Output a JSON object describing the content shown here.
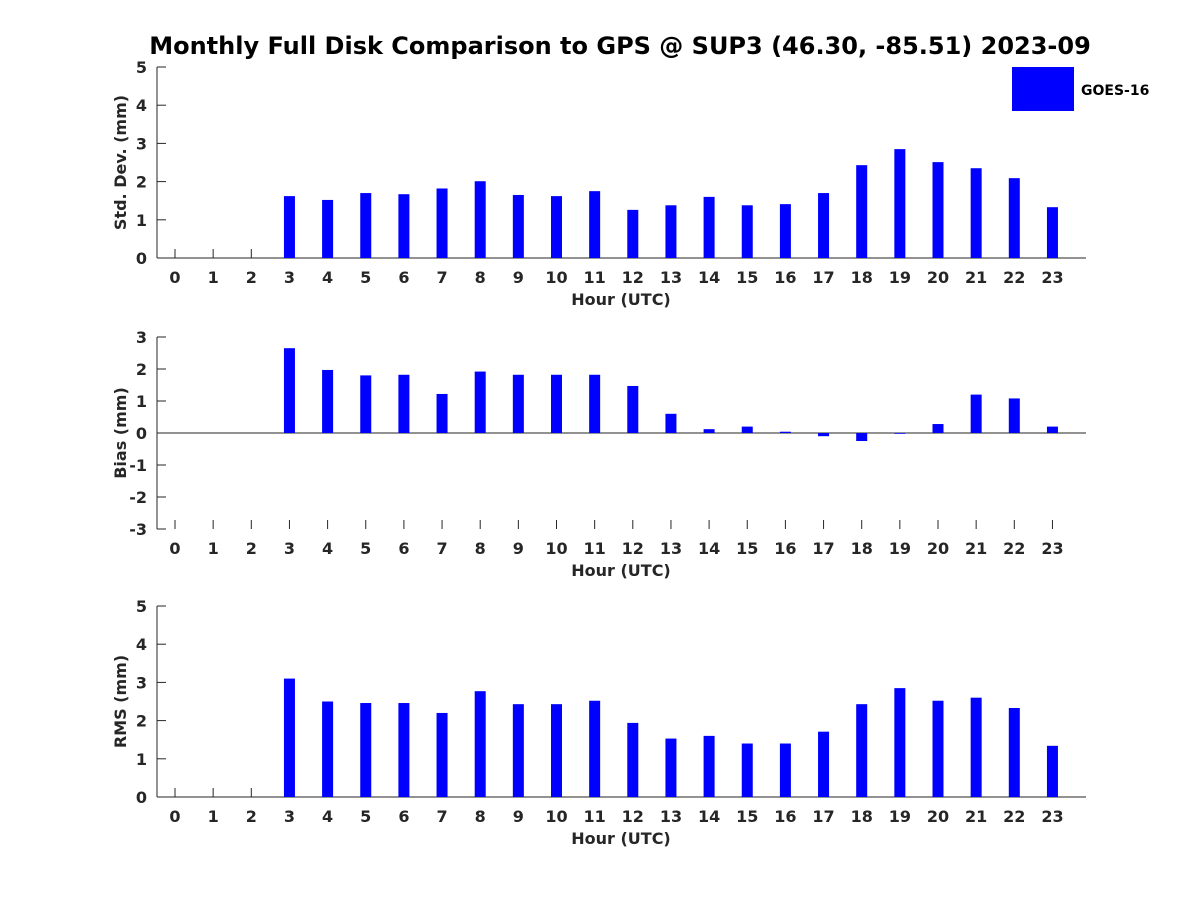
{
  "title": "Monthly Full Disk Comparison to GPS @ SUP3 (46.30, -85.51) 2023-09",
  "colors": {
    "bar": "#0000ff",
    "axis": "#262626"
  },
  "legend": {
    "label": "GOES-16",
    "placement": "top-right"
  },
  "chart_data": [
    {
      "type": "bar",
      "ylabel": "Std. Dev. (mm)",
      "xlabel": "Hour (UTC)",
      "ylim": [
        0,
        5
      ],
      "yticks": [
        0,
        1,
        2,
        3,
        4,
        5
      ],
      "categories": [
        "0",
        "1",
        "2",
        "3",
        "4",
        "5",
        "6",
        "7",
        "8",
        "9",
        "10",
        "11",
        "12",
        "13",
        "14",
        "15",
        "16",
        "17",
        "18",
        "19",
        "20",
        "21",
        "22",
        "23"
      ],
      "series": [
        {
          "name": "GOES-16",
          "values": [
            null,
            null,
            null,
            1.62,
            1.52,
            1.7,
            1.67,
            1.82,
            2.01,
            1.65,
            1.62,
            1.75,
            1.26,
            1.38,
            1.6,
            1.38,
            1.41,
            1.7,
            2.43,
            2.85,
            2.51,
            2.35,
            2.09,
            1.33
          ]
        }
      ],
      "legend": true
    },
    {
      "type": "bar",
      "ylabel": "Bias (mm)",
      "xlabel": "Hour (UTC)",
      "ylim": [
        -3,
        3
      ],
      "yticks": [
        -3,
        -2,
        -1,
        0,
        1,
        2,
        3
      ],
      "categories": [
        "0",
        "1",
        "2",
        "3",
        "4",
        "5",
        "6",
        "7",
        "8",
        "9",
        "10",
        "11",
        "12",
        "13",
        "14",
        "15",
        "16",
        "17",
        "18",
        "19",
        "20",
        "21",
        "22",
        "23"
      ],
      "series": [
        {
          "name": "GOES-16",
          "values": [
            null,
            null,
            null,
            2.65,
            1.97,
            1.8,
            1.82,
            1.22,
            1.92,
            1.82,
            1.82,
            1.82,
            1.47,
            0.6,
            0.12,
            0.2,
            0.04,
            -0.1,
            -0.25,
            -0.02,
            0.28,
            1.2,
            1.08,
            0.2
          ]
        }
      ],
      "legend": false
    },
    {
      "type": "bar",
      "ylabel": "RMS (mm)",
      "xlabel": "Hour (UTC)",
      "ylim": [
        0,
        5
      ],
      "yticks": [
        0,
        1,
        2,
        3,
        4,
        5
      ],
      "categories": [
        "0",
        "1",
        "2",
        "3",
        "4",
        "5",
        "6",
        "7",
        "8",
        "9",
        "10",
        "11",
        "12",
        "13",
        "14",
        "15",
        "16",
        "17",
        "18",
        "19",
        "20",
        "21",
        "22",
        "23"
      ],
      "series": [
        {
          "name": "GOES-16",
          "values": [
            null,
            null,
            null,
            3.1,
            2.5,
            2.46,
            2.46,
            2.2,
            2.77,
            2.43,
            2.43,
            2.52,
            1.94,
            1.53,
            1.6,
            1.4,
            1.4,
            1.71,
            2.43,
            2.85,
            2.52,
            2.6,
            2.33,
            1.34
          ]
        }
      ],
      "legend": false
    }
  ]
}
